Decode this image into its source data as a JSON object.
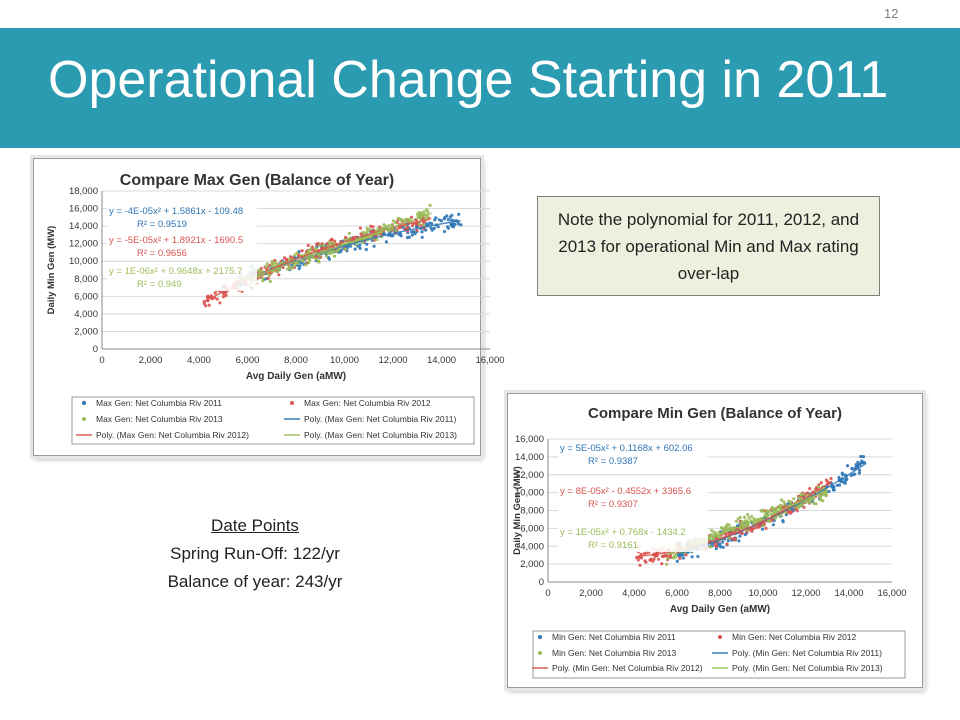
{
  "slide": {
    "page_number": "12",
    "title": "Operational Change Starting in 2011",
    "note": "Note the polynomial for 2011, 2012, and 2013 for operational Min and Max rating over-lap",
    "date_points": {
      "heading": "Date Points",
      "lines": [
        "Spring Run-Off: 122/yr",
        "Balance of year: 243/yr"
      ]
    },
    "colors": {
      "band": "#2a9bb0",
      "note_bg": "#ebf1de",
      "s2011": "#2e75b6",
      "s2012": "#d9534f",
      "s2013": "#9bbb59"
    }
  },
  "chart_data": [
    {
      "type": "scatter",
      "title": "Compare Max Gen (Balance of Year)",
      "xlabel": "Avg Daily Gen (aMW)",
      "ylabel": "Daily Min Gen (MW)",
      "xlim": [
        0,
        16000
      ],
      "ylim": [
        0,
        18000
      ],
      "xticks": [
        "0",
        "2,000",
        "4,000",
        "6,000",
        "8,000",
        "10,000",
        "12,000",
        "14,000",
        "16,000"
      ],
      "yticks": [
        "0",
        "2,000",
        "4,000",
        "6,000",
        "8,000",
        "10,000",
        "12,000",
        "14,000",
        "16,000",
        "18,000"
      ],
      "grid": true,
      "legend_position": "bottom",
      "legend": [
        "Max Gen: Net Columbia Riv 2011",
        "Max Gen: Net Columbia Riv 2012",
        "Max Gen: Net Columbia Riv 2013",
        "Poly. (Max Gen: Net Columbia Riv 2011)",
        "Poly. (Max Gen: Net Columbia Riv 2012)",
        "Poly. (Max Gen: Net Columbia Riv 2013)"
      ],
      "series": [
        {
          "name": "Max Gen: Net Columbia Riv 2011",
          "color": "#2e75b6",
          "x_range": [
            5500,
            14800
          ],
          "a": -4e-05,
          "b": 1.5861,
          "c": -109.48,
          "n": 230,
          "equation": "y = -4E-05x² + 1.5861x - 109.48",
          "r2": "R² = 0.9519"
        },
        {
          "name": "Max Gen: Net Columbia Riv 2012",
          "color": "#d9534f",
          "x_range": [
            4200,
            13500
          ],
          "a": -5e-05,
          "b": 1.8921,
          "c": -1690.5,
          "n": 230,
          "equation": "y = -5E-05x² + 1.8921x - 1690.5",
          "r2": "R² = 0.9656"
        },
        {
          "name": "Max Gen: Net Columbia Riv 2013",
          "color": "#9bbb59",
          "x_range": [
            5600,
            13600
          ],
          "a": 1e-06,
          "b": 0.9648,
          "c": 2175.7,
          "n": 230,
          "equation": "y = 1E-06x² + 0.9648x + 2175.7",
          "r2": "R² = 0.949"
        }
      ]
    },
    {
      "type": "scatter",
      "title": "Compare Min Gen (Balance of Year)",
      "xlabel": "Avg Daily Gen (aMW)",
      "ylabel": "Daily Min Gen (MW)",
      "xlim": [
        0,
        16000
      ],
      "ylim": [
        0,
        16000
      ],
      "xticks": [
        "0",
        "2,000",
        "4,000",
        "6,000",
        "8,000",
        "10,000",
        "12,000",
        "14,000",
        "16,000"
      ],
      "yticks": [
        "0",
        "2,000",
        "4,000",
        "6,000",
        "8,000",
        "10,000",
        "12,000",
        "14,000",
        "16,000"
      ],
      "grid": true,
      "legend_position": "bottom",
      "legend": [
        "Min Gen: Net Columbia Riv 2011",
        "Min Gen: Net Columbia Riv 2012",
        "Min Gen: Net Columbia Riv 2013",
        "Poly. (Min Gen: Net Columbia Riv 2011)",
        "Poly. (Min Gen: Net Columbia Riv 2012)",
        "Poly. (Min Gen: Net Columbia Riv 2013)"
      ],
      "series": [
        {
          "name": "Min Gen: Net Columbia Riv 2011",
          "color": "#2e75b6",
          "x_range": [
            6000,
            14800
          ],
          "a": 5e-05,
          "b": 0.1168,
          "c": 602.06,
          "n": 230,
          "equation": "y = 5E-05x² + 0.1168x + 602.06",
          "r2": "R² = 0.9387"
        },
        {
          "name": "Min Gen: Net Columbia Riv 2012",
          "color": "#d9534f",
          "x_range": [
            4100,
            13200
          ],
          "a": 8e-05,
          "b": -0.4552,
          "c": 3365.6,
          "n": 230,
          "equation": "y = 8E-05x² - 0.4552x + 3365.6",
          "r2": "R² = 0.9307"
        },
        {
          "name": "Min Gen: Net Columbia Riv 2013",
          "color": "#9bbb59",
          "x_range": [
            5500,
            13000
          ],
          "a": 1e-05,
          "b": 0.768,
          "c": -1434.2,
          "n": 230,
          "equation": "y = 1E-05x² + 0.768x - 1434.2",
          "r2": "R² = 0.9161"
        }
      ]
    }
  ]
}
